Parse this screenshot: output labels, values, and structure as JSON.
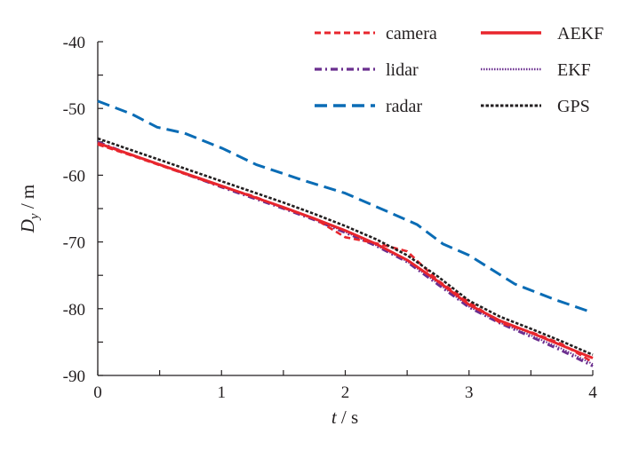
{
  "chart_data": {
    "type": "line",
    "title": "",
    "xlabel": {
      "var": "t",
      "unit": " / s"
    },
    "ylabel": {
      "var": "D",
      "sub": "y",
      "unit": " / m"
    },
    "xlim": [
      0,
      4
    ],
    "ylim": [
      -90,
      -40
    ],
    "xticks": [
      0,
      1,
      2,
      3,
      4
    ],
    "yticks": [
      -90,
      -80,
      -70,
      -60,
      -50,
      -40
    ],
    "grid": false,
    "legend_position": "top-right",
    "x": [
      0,
      0.25,
      0.5,
      0.75,
      1,
      1.25,
      1.5,
      1.75,
      2,
      2.25,
      2.5,
      2.75,
      3,
      3.25,
      3.5,
      3.75,
      4
    ],
    "series": [
      {
        "name": "camera",
        "color": "#e8262d",
        "style": "dash",
        "values": [
          -55.4,
          -56.9,
          -58.5,
          -60.1,
          -61.7,
          -63.1,
          -64.9,
          -66.5,
          -69.3,
          -70.2,
          -71.4,
          -75.8,
          -79.0,
          -82.1,
          -83.5,
          -85.3,
          -88.0
        ]
      },
      {
        "name": "lidar",
        "color": "#6b2f8f",
        "style": "dashdot",
        "values": [
          -55.0,
          -56.8,
          -58.4,
          -60.1,
          -61.8,
          -63.4,
          -65.0,
          -66.7,
          -68.6,
          -70.6,
          -73.0,
          -76.4,
          -79.8,
          -82.2,
          -84.2,
          -86.3,
          -88.6
        ]
      },
      {
        "name": "radar",
        "color": "#0a6cb5",
        "style": "longdash",
        "x": [
          0,
          0.27,
          0.48,
          0.7,
          1.01,
          1.28,
          1.65,
          2.0,
          2.36,
          2.58,
          2.79,
          3.0,
          3.37,
          3.69,
          4.0
        ],
        "values": [
          -48.9,
          -50.8,
          -52.8,
          -53.7,
          -56.0,
          -58.4,
          -60.7,
          -62.7,
          -65.6,
          -67.4,
          -70.3,
          -72.0,
          -76.3,
          -78.6,
          -80.6
        ]
      },
      {
        "name": "AEKF",
        "color": "#e8262d",
        "style": "solid",
        "values": [
          -55.2,
          -56.8,
          -58.4,
          -60.0,
          -61.6,
          -63.2,
          -64.8,
          -66.5,
          -68.3,
          -70.3,
          -72.7,
          -75.9,
          -79.4,
          -81.8,
          -83.6,
          -85.5,
          -87.4
        ]
      },
      {
        "name": "EKF",
        "color": "#6b2f8f",
        "style": "dot",
        "values": [
          -55.1,
          -56.8,
          -58.4,
          -60.0,
          -61.7,
          -63.3,
          -64.9,
          -66.6,
          -68.5,
          -70.5,
          -72.9,
          -76.2,
          -79.7,
          -82.1,
          -84.0,
          -86.0,
          -88.3
        ]
      },
      {
        "name": "GPS",
        "color": "#231f20",
        "style": "shortdash",
        "values": [
          -54.5,
          -56.1,
          -57.7,
          -59.3,
          -60.9,
          -62.5,
          -64.1,
          -65.8,
          -67.6,
          -69.6,
          -72.0,
          -75.2,
          -78.8,
          -81.2,
          -83.0,
          -84.9,
          -86.9
        ]
      }
    ]
  }
}
